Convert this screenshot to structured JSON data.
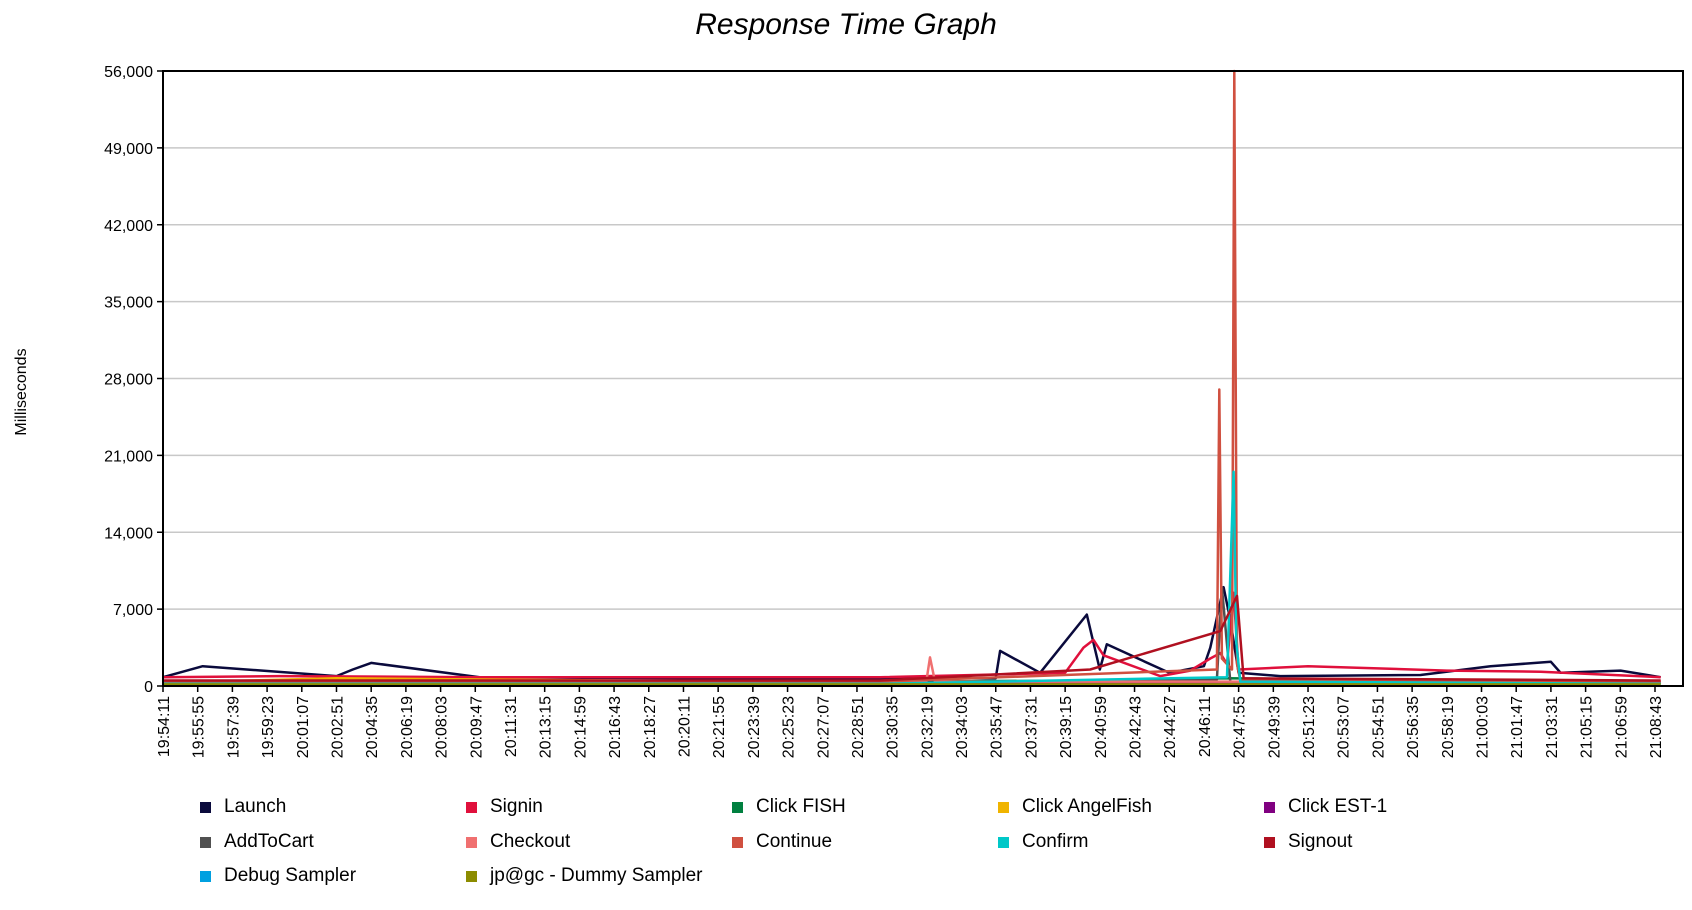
{
  "chart_data": {
    "type": "line",
    "title": "Response Time Graph",
    "ylabel": "Milliseconds",
    "xlabel": "",
    "ylim": [
      0,
      56000
    ],
    "yticks": [
      0,
      7000,
      14000,
      21000,
      28000,
      35000,
      42000,
      49000,
      56000
    ],
    "ytick_labels": [
      "0",
      "7,000",
      "14,000",
      "21,000",
      "28,000",
      "35,000",
      "42,000",
      "49,000",
      "56,000"
    ],
    "xtick_labels": [
      "19:54:11",
      "19:55:55",
      "19:57:39",
      "19:59:23",
      "20:01:07",
      "20:02:51",
      "20:04:35",
      "20:06:19",
      "20:08:03",
      "20:09:47",
      "20:11:31",
      "20:13:15",
      "20:14:59",
      "20:16:43",
      "20:18:27",
      "20:20:11",
      "20:21:55",
      "20:23:39",
      "20:25:23",
      "20:27:07",
      "20:28:51",
      "20:30:35",
      "20:32:19",
      "20:34:03",
      "20:35:47",
      "20:37:31",
      "20:39:15",
      "20:40:59",
      "20:42:43",
      "20:44:27",
      "20:46:11",
      "20:47:55",
      "20:49:39",
      "20:51:23",
      "20:53:07",
      "20:54:51",
      "20:56:35",
      "20:58:19",
      "21:00:03",
      "21:01:47",
      "21:03:31",
      "21:05:15",
      "21:06:59",
      "21:08:43"
    ],
    "grid": true,
    "legend_position": "bottom",
    "series": [
      {
        "name": "Launch",
        "color": "#0a0a3c",
        "x": [
          "19:54:11",
          "19:56:10",
          "20:02:51",
          "20:03:40",
          "20:04:35",
          "20:10:00",
          "20:20:00",
          "20:30:00",
          "20:35:47",
          "20:36:00",
          "20:38:00",
          "20:40:20",
          "20:40:59",
          "20:41:20",
          "20:44:27",
          "20:46:11",
          "20:46:30",
          "20:47:10",
          "20:47:30",
          "20:47:55",
          "20:50:00",
          "20:57:00",
          "21:00:30",
          "21:03:31",
          "21:04:00",
          "21:07:00",
          "21:09:00"
        ],
        "y": [
          800,
          1800,
          900,
          1500,
          2100,
          800,
          700,
          700,
          700,
          3200,
          1200,
          6500,
          1500,
          3800,
          1200,
          1800,
          3500,
          9000,
          6000,
          1200,
          900,
          1000,
          1800,
          2200,
          1200,
          1400,
          800
        ]
      },
      {
        "name": "Signin",
        "color": "#e0103c",
        "x": [
          "19:54:11",
          "20:00:00",
          "20:10:00",
          "20:20:00",
          "20:30:00",
          "20:39:15",
          "20:40:10",
          "20:40:40",
          "20:41:10",
          "20:44:00",
          "20:45:30",
          "20:46:30",
          "20:47:00",
          "20:47:20",
          "20:47:40",
          "20:47:55",
          "20:51:23",
          "20:58:19",
          "21:03:00",
          "21:09:00"
        ],
        "y": [
          800,
          900,
          800,
          800,
          800,
          1200,
          3500,
          4200,
          2800,
          900,
          1400,
          2500,
          3000,
          2000,
          8500,
          1500,
          1800,
          1400,
          1300,
          800
        ]
      },
      {
        "name": "Click FISH",
        "color": "#008040",
        "x": [
          "19:54:11",
          "20:20:00",
          "20:40:59",
          "20:47:20",
          "21:09:00"
        ],
        "y": [
          300,
          300,
          500,
          700,
          300
        ]
      },
      {
        "name": "Click AngelFish",
        "color": "#f0b400",
        "x": [
          "19:54:11",
          "20:02:51",
          "20:30:00",
          "21:09:00"
        ],
        "y": [
          300,
          700,
          300,
          300
        ]
      },
      {
        "name": "Click EST-1",
        "color": "#800080",
        "x": [
          "19:54:11",
          "20:30:00",
          "21:09:00"
        ],
        "y": [
          300,
          300,
          300
        ]
      },
      {
        "name": "AddToCart",
        "color": "#505050",
        "x": [
          "19:54:11",
          "20:30:00",
          "20:46:50",
          "20:47:05",
          "20:47:30",
          "21:09:00"
        ],
        "y": [
          300,
          300,
          600,
          9000,
          400,
          300
        ]
      },
      {
        "name": "Checkout",
        "color": "#f07070",
        "x": [
          "19:54:11",
          "20:32:19",
          "20:32:30",
          "20:32:45",
          "20:33:10",
          "21:09:00"
        ],
        "y": [
          400,
          400,
          2600,
          400,
          400,
          400
        ]
      },
      {
        "name": "Continue",
        "color": "#d05040",
        "x": [
          "19:54:11",
          "20:30:00",
          "20:46:50",
          "20:46:57",
          "20:47:05",
          "20:47:35",
          "20:47:42",
          "20:47:50",
          "20:48:00",
          "21:09:00"
        ],
        "y": [
          400,
          400,
          1500,
          27000,
          2500,
          1500,
          56000,
          2000,
          500,
          400
        ]
      },
      {
        "name": "Confirm",
        "color": "#00c8c8",
        "x": [
          "19:54:11",
          "20:30:00",
          "20:47:20",
          "20:47:40",
          "20:47:48",
          "20:48:00",
          "21:09:00"
        ],
        "y": [
          200,
          200,
          800,
          19500,
          4000,
          400,
          200
        ]
      },
      {
        "name": "Signout",
        "color": "#b01020",
        "x": [
          "19:54:11",
          "20:30:00",
          "20:40:30",
          "20:47:00",
          "20:47:50",
          "20:48:10",
          "21:09:00"
        ],
        "y": [
          500,
          500,
          1500,
          5000,
          8200,
          700,
          500
        ]
      },
      {
        "name": "Debug Sampler",
        "color": "#00a0e0",
        "x": [
          "19:54:11",
          "21:09:00"
        ],
        "y": [
          100,
          100
        ]
      },
      {
        "name": "jp@gc - Dummy Sampler",
        "color": "#8c8c00",
        "x": [
          "19:54:11",
          "21:09:00"
        ],
        "y": [
          150,
          150
        ]
      }
    ]
  }
}
